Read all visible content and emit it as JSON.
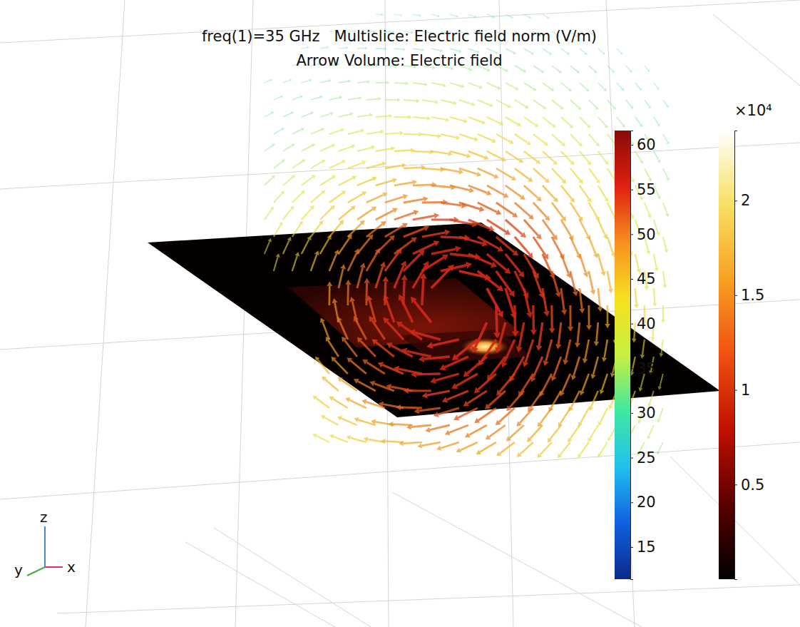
{
  "chart_data": {
    "type": "field3d",
    "title": "freq(1)=35 GHz   Multislice: Electric field norm (V/m)",
    "subtitle": "Arrow Volume: Electric field",
    "colorbars": [
      {
        "range": [
          11.4,
          61.6
        ],
        "ticks": [
          15,
          20,
          25,
          30,
          35,
          40,
          45,
          50,
          55,
          60
        ]
      },
      {
        "range": [
          0,
          2.37
        ],
        "ticks": [
          0.5,
          1,
          1.5,
          2
        ],
        "multiplier": "×10⁴"
      }
    ],
    "axis_labels": [
      "x",
      "y",
      "z"
    ]
  }
}
